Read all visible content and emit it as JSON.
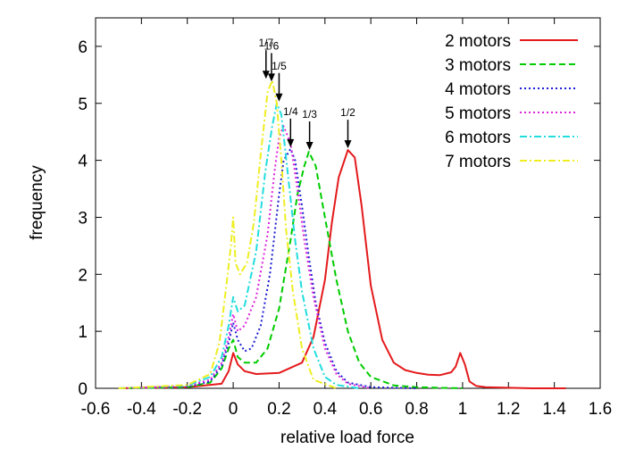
{
  "chart_data": {
    "type": "line",
    "title": "",
    "xlabel": "relative load force",
    "ylabel": "frequency",
    "xlim": [
      -0.6,
      1.6
    ],
    "ylim": [
      0,
      6.5
    ],
    "xticks": [
      "-0.6",
      "-0.4",
      "-0.2",
      "0",
      "0.2",
      "0.4",
      "0.6",
      "0.8",
      "1",
      "1.2",
      "1.4",
      "1.6"
    ],
    "yticks": [
      "0",
      "1",
      "2",
      "3",
      "4",
      "5",
      "6"
    ],
    "grid": false,
    "legend_position": "top-right",
    "series": [
      {
        "name": "2 motors",
        "color": "#e41a1c",
        "dash": "solid",
        "x": [
          -0.5,
          -0.2,
          -0.05,
          -0.02,
          0.0,
          0.02,
          0.05,
          0.1,
          0.2,
          0.3,
          0.35,
          0.4,
          0.43,
          0.46,
          0.5,
          0.53,
          0.56,
          0.6,
          0.65,
          0.7,
          0.75,
          0.8,
          0.85,
          0.9,
          0.95,
          0.97,
          0.99,
          1.01,
          1.03,
          1.06,
          1.1,
          1.2,
          1.3,
          1.45
        ],
        "y": [
          0.0,
          0.02,
          0.08,
          0.3,
          0.62,
          0.42,
          0.3,
          0.25,
          0.27,
          0.45,
          0.9,
          1.9,
          2.9,
          3.7,
          4.18,
          4.05,
          3.2,
          1.8,
          0.85,
          0.45,
          0.32,
          0.27,
          0.24,
          0.23,
          0.28,
          0.38,
          0.62,
          0.42,
          0.12,
          0.04,
          0.02,
          0.01,
          0.0,
          0.0
        ]
      },
      {
        "name": "3 motors",
        "color": "#00cc00",
        "dash": "dashed",
        "x": [
          -0.5,
          -0.2,
          -0.1,
          -0.05,
          -0.02,
          0.0,
          0.02,
          0.05,
          0.1,
          0.15,
          0.2,
          0.25,
          0.28,
          0.31,
          0.33,
          0.36,
          0.4,
          0.45,
          0.5,
          0.55,
          0.6,
          0.7,
          0.8,
          0.9,
          1.0
        ],
        "y": [
          0.0,
          0.02,
          0.1,
          0.35,
          0.7,
          0.85,
          0.55,
          0.45,
          0.45,
          0.7,
          1.4,
          2.6,
          3.4,
          3.9,
          4.15,
          3.9,
          3.0,
          1.9,
          1.0,
          0.45,
          0.2,
          0.05,
          0.02,
          0.01,
          0.0
        ]
      },
      {
        "name": "4 motors",
        "color": "#1c1cd4",
        "dash": "dotted",
        "x": [
          -0.5,
          -0.2,
          -0.1,
          -0.05,
          -0.02,
          0.0,
          0.02,
          0.05,
          0.08,
          0.12,
          0.16,
          0.2,
          0.22,
          0.25,
          0.27,
          0.3,
          0.33,
          0.36,
          0.4,
          0.45,
          0.5,
          0.6,
          0.8
        ],
        "y": [
          0.0,
          0.03,
          0.12,
          0.4,
          0.8,
          1.15,
          0.85,
          0.65,
          0.7,
          1.1,
          2.0,
          3.4,
          4.0,
          4.2,
          4.0,
          3.2,
          2.3,
          1.5,
          0.8,
          0.3,
          0.1,
          0.02,
          0.0
        ]
      },
      {
        "name": "5 motors",
        "color": "#dd22dd",
        "dash": "dotted",
        "x": [
          -0.5,
          -0.2,
          -0.1,
          -0.05,
          -0.02,
          0.0,
          0.02,
          0.05,
          0.1,
          0.15,
          0.18,
          0.2,
          0.22,
          0.25,
          0.28,
          0.31,
          0.35,
          0.4,
          0.45,
          0.5,
          0.6
        ],
        "y": [
          0.0,
          0.04,
          0.15,
          0.45,
          0.9,
          1.3,
          1.0,
          1.1,
          1.6,
          2.7,
          3.8,
          4.4,
          4.6,
          4.3,
          3.5,
          2.6,
          1.6,
          0.7,
          0.25,
          0.08,
          0.0
        ]
      },
      {
        "name": "6 motors",
        "color": "#22dddd",
        "dash": "dashdot",
        "x": [
          -0.5,
          -0.2,
          -0.1,
          -0.05,
          -0.02,
          0.0,
          0.02,
          0.05,
          0.1,
          0.14,
          0.17,
          0.19,
          0.21,
          0.24,
          0.27,
          0.3,
          0.35,
          0.4,
          0.45,
          0.55
        ],
        "y": [
          0.0,
          0.05,
          0.2,
          0.55,
          1.1,
          1.6,
          1.35,
          1.45,
          2.4,
          3.8,
          4.6,
          5.0,
          4.8,
          3.7,
          2.6,
          1.7,
          0.7,
          0.2,
          0.06,
          0.0
        ]
      },
      {
        "name": "7 motors",
        "color": "#eeee22",
        "dash": "dashdot",
        "x": [
          -0.5,
          -0.2,
          -0.1,
          -0.06,
          -0.03,
          -0.01,
          0.0,
          0.01,
          0.03,
          0.06,
          0.09,
          0.12,
          0.15,
          0.17,
          0.19,
          0.21,
          0.23,
          0.26,
          0.3,
          0.35,
          0.45
        ],
        "y": [
          0.0,
          0.06,
          0.25,
          0.8,
          1.8,
          2.5,
          3.0,
          2.2,
          2.0,
          2.2,
          2.9,
          4.1,
          5.2,
          5.4,
          5.0,
          4.0,
          2.8,
          1.7,
          0.7,
          0.15,
          0.0
        ]
      }
    ],
    "annotations": [
      {
        "text": "1/2",
        "x": 0.5,
        "y": 4.18
      },
      {
        "text": "1/3",
        "x": 0.333,
        "y": 4.15
      },
      {
        "text": "1/4",
        "x": 0.25,
        "y": 4.2
      },
      {
        "text": "1/5",
        "x": 0.2,
        "y": 5.0
      },
      {
        "text": "1/6",
        "x": 0.167,
        "y": 5.35
      },
      {
        "text": "1/7",
        "x": 0.143,
        "y": 5.4
      }
    ]
  }
}
